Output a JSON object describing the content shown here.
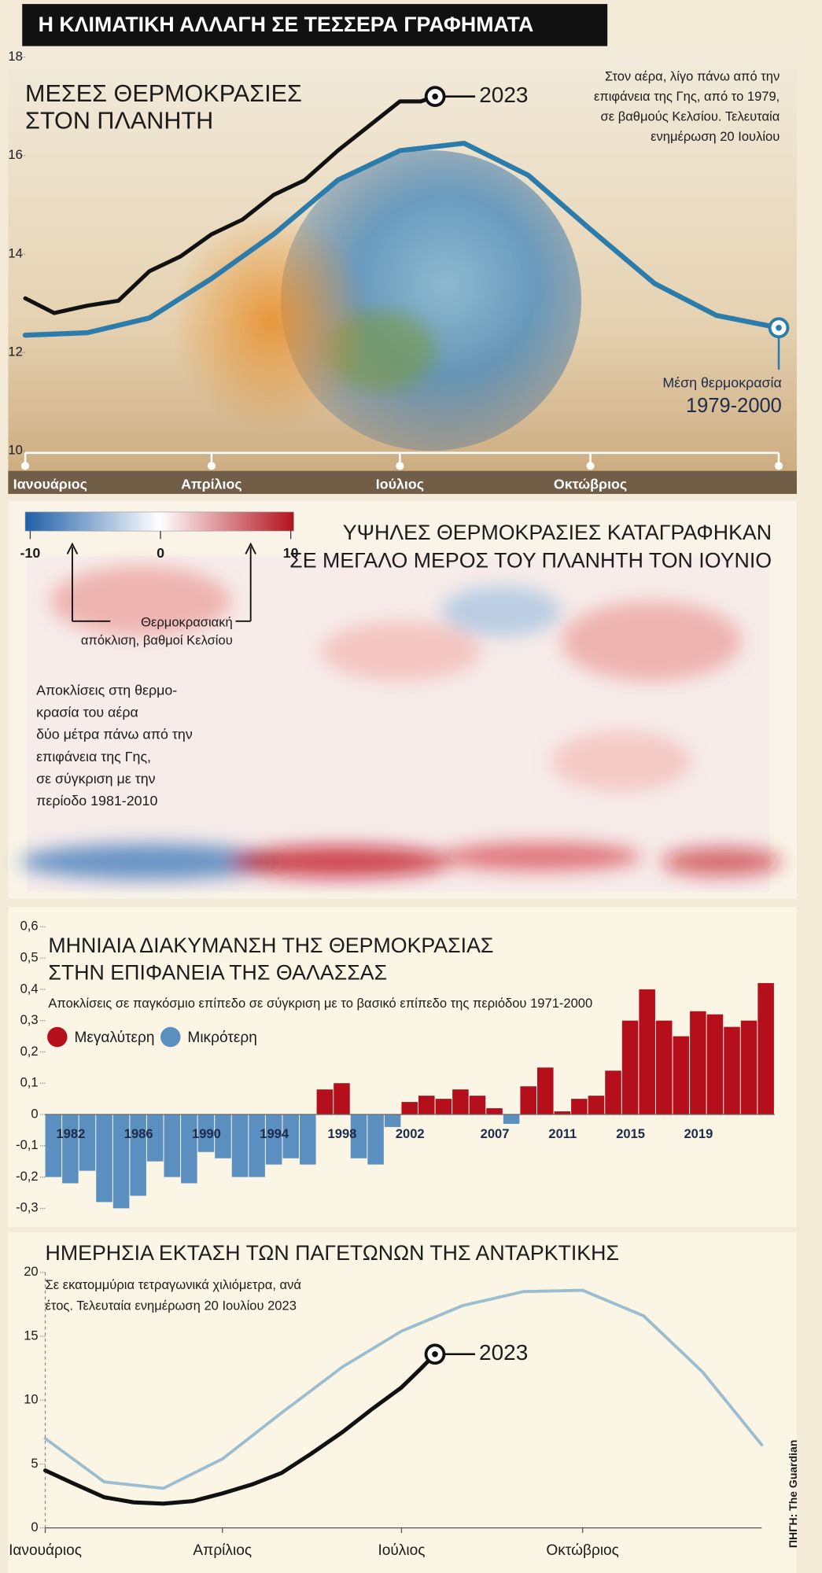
{
  "title": "Η ΚΛΙΜΑΤΙΚΗ ΑΛΛΑΓΗ ΣΕ ΤΕΣΣΕΡΑ ΓΡΑΦΗΜΑΤΑ",
  "source": "ΠΗΓΗ: The Guardian",
  "chart_data": [
    {
      "type": "line",
      "title": [
        "ΜΕΣΕΣ ΘΕΡΜΟΚΡΑΣΙΕΣ",
        "ΣΤΟΝ ΠΛΑΝΗΤΗ"
      ],
      "subtitle": [
        "Στον αέρα, λίγο πάνω από την",
        "επιφάνεια της Γης, από το 1979,",
        "σε βαθμούς Κελσίου. Τελευταία",
        "ενημέρωση 20 Ιουλίου"
      ],
      "xlim": [
        1,
        365
      ],
      "xticks": [
        {
          "value": 1,
          "label": "Ιανουάριος"
        },
        {
          "value": 91,
          "label": "Απρίλιος"
        },
        {
          "value": 182,
          "label": "Ιούλιος"
        },
        {
          "value": 274,
          "label": "Οκτώβριος"
        }
      ],
      "ylim": [
        10,
        18
      ],
      "yticks": [
        10,
        12,
        14,
        16,
        18
      ],
      "series": [
        {
          "name": "2023",
          "color": "#111111",
          "x": [
            1,
            15,
            31,
            46,
            61,
            76,
            91,
            106,
            121,
            136,
            152,
            167,
            182,
            192,
            199
          ],
          "values": [
            13.1,
            12.8,
            12.95,
            13.05,
            13.65,
            13.95,
            14.4,
            14.7,
            15.2,
            15.5,
            16.1,
            16.6,
            17.1,
            17.1,
            17.2
          ]
        },
        {
          "name": [
            "Μέση θερμοκρασία",
            "1979-2000"
          ],
          "color": "#2b7bab",
          "x": [
            1,
            31,
            61,
            91,
            121,
            152,
            182,
            213,
            244,
            274,
            305,
            335,
            365
          ],
          "values": [
            12.35,
            12.4,
            12.7,
            13.5,
            14.4,
            15.5,
            16.1,
            16.25,
            15.6,
            14.5,
            13.4,
            12.75,
            12.5
          ]
        }
      ]
    },
    {
      "type": "map",
      "title": [
        "ΥΨΗΛΕΣ ΘΕΡΜΟΚΡΑΣΙΕΣ ΚΑΤΑΓΡΑΦΗΚΑΝ",
        "ΣΕ ΜΕΓΑΛΟ ΜΕΡΟΣ ΤΟΥ ΠΛΑΝΗΤΗ ΤΟΝ ΙΟΥΝΙΟ"
      ],
      "colorbar": {
        "ticks": [
          -10,
          0,
          10
        ],
        "colors": [
          "#1f5fa8",
          "#ffffff",
          "#b2121d"
        ],
        "label": [
          "Θερμοκρασιακή",
          "απόκλιση, βαθμοί Κελσίου"
        ]
      },
      "note": [
        "Αποκλίσεις στη θερμο-",
        "κρασία του αέρα",
        "δύο μέτρα πάνω από την",
        "επιφάνεια της Γης,",
        "σε σύγκριση με την",
        "περίοδο 1981-2010"
      ]
    },
    {
      "type": "bar",
      "title": [
        "ΜΗΝΙΑΙΑ ΔΙΑΚΥΜΑΝΣΗ ΤΗΣ ΘΕΡΜΟΚΡΑΣΙΑΣ",
        "ΣΤΗΝ ΕΠΙΦΑΝΕΙΑ ΤΗΣ ΘΑΛΑΣΣΑΣ"
      ],
      "subtitle": [
        "Αποκλίσεις σε παγκόσμιο επίπεδο σε σύγκριση με το βασικό επίπεδο της περιόδου 1971-2000"
      ],
      "x": [
        1981,
        1982,
        1983,
        1984,
        1985,
        1986,
        1987,
        1988,
        1989,
        1990,
        1991,
        1992,
        1993,
        1994,
        1995,
        1996,
        1997,
        1998,
        1999,
        2000,
        2001,
        2002,
        2003,
        2004,
        2005,
        2006,
        2007,
        2008,
        2009,
        2010,
        2011,
        2012,
        2013,
        2014,
        2015,
        2016,
        2017,
        2018,
        2019,
        2020,
        2021,
        2022,
        2023
      ],
      "xlim": [
        1981,
        2024
      ],
      "xticks": [
        1982,
        1986,
        1990,
        1994,
        1998,
        2002,
        2007,
        2011,
        2015,
        2019
      ],
      "ylim": [
        -0.38,
        0.6
      ],
      "yticks": [
        {
          "value": 0.6,
          "label": "0,6"
        },
        {
          "value": 0.5,
          "label": "0,5"
        },
        {
          "value": 0.4,
          "label": "0,4"
        },
        {
          "value": 0.3,
          "label": "0,3"
        },
        {
          "value": 0.2,
          "label": "0,2"
        },
        {
          "value": 0.1,
          "label": "0,1"
        },
        0,
        {
          "value": -0.1,
          "label": "-0,1"
        },
        {
          "value": -0.2,
          "label": "-0,2"
        },
        {
          "value": -0.3,
          "label": "-0,3"
        }
      ],
      "series": [
        {
          "name": "Μεγαλύτερη",
          "color": "#b50f1c",
          "values": [
            null,
            null,
            null,
            null,
            null,
            null,
            null,
            null,
            null,
            null,
            null,
            null,
            null,
            null,
            null,
            null,
            0.08,
            0.1,
            null,
            null,
            null,
            0.04,
            0.06,
            0.05,
            0.08,
            0.06,
            0.02,
            null,
            0.09,
            0.15,
            0.01,
            0.05,
            0.06,
            0.14,
            0.3,
            0.4,
            0.3,
            0.25,
            0.33,
            0.32,
            0.28,
            0.3,
            0.42
          ]
        },
        {
          "name": "Μικρότερη",
          "color": "#5b8fbf",
          "values": [
            -0.2,
            -0.22,
            -0.18,
            -0.28,
            -0.3,
            -0.26,
            -0.15,
            -0.2,
            -0.22,
            -0.12,
            -0.14,
            -0.2,
            -0.2,
            -0.16,
            -0.14,
            -0.16,
            null,
            null,
            -0.14,
            -0.16,
            -0.04,
            null,
            null,
            null,
            null,
            null,
            null,
            -0.03,
            null,
            null,
            null,
            null,
            null,
            null,
            null,
            null,
            null,
            null,
            null,
            null,
            null,
            null,
            null
          ]
        }
      ]
    },
    {
      "type": "line",
      "title": [
        "ΗΜΕΡΗΣΙΑ ΕΚΤΑΣΗ ΤΩΝ ΠΑΓΕΤΩΝΩΝ ΤΗΣ ΑΝΤΑΡΚΤΙΚΗΣ"
      ],
      "subtitle": [
        "Σε εκατομμύρια τετραγωνικά χιλιόμετρα, ανά",
        "έτος. Τελευταία ενημέρωση 20 Ιουλίου 2023"
      ],
      "xlim": [
        1,
        365
      ],
      "xticks": [
        {
          "value": 1,
          "label": "Ιανουάριος"
        },
        {
          "value": 91,
          "label": "Απρίλιος"
        },
        {
          "value": 182,
          "label": "Ιούλιος"
        },
        {
          "value": 274,
          "label": "Οκτώβριος"
        }
      ],
      "ylim": [
        0,
        20
      ],
      "yticks": [
        0,
        5,
        10,
        15,
        20
      ],
      "series": [
        {
          "color": "#5b97c0",
          "x": [
            1,
            31,
            61,
            91,
            121,
            152,
            182,
            213,
            244,
            274,
            305,
            335,
            365
          ],
          "values": [
            7.0,
            3.6,
            3.1,
            5.4,
            9.0,
            12.6,
            15.4,
            17.4,
            18.5,
            18.6,
            16.6,
            12.2,
            6.5
          ]
        },
        {
          "name": "2023",
          "color": "#111111",
          "x": [
            1,
            15,
            31,
            46,
            61,
            76,
            91,
            106,
            121,
            136,
            152,
            167,
            182,
            192,
            199
          ],
          "values": [
            4.5,
            3.5,
            2.4,
            2.0,
            1.9,
            2.1,
            2.7,
            3.4,
            4.3,
            5.8,
            7.5,
            9.3,
            11.0,
            12.5,
            13.6
          ]
        }
      ]
    }
  ]
}
